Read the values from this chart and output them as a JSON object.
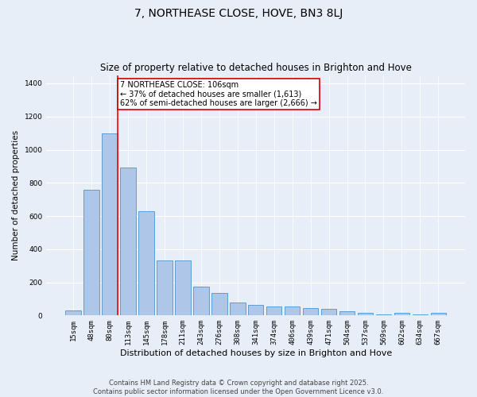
{
  "title": "7, NORTHEASE CLOSE, HOVE, BN3 8LJ",
  "subtitle": "Size of property relative to detached houses in Brighton and Hove",
  "xlabel": "Distribution of detached houses by size in Brighton and Hove",
  "ylabel": "Number of detached properties",
  "footer_line1": "Contains HM Land Registry data © Crown copyright and database right 2025.",
  "footer_line2": "Contains public sector information licensed under the Open Government Licence v3.0.",
  "categories": [
    "15sqm",
    "48sqm",
    "80sqm",
    "113sqm",
    "145sqm",
    "178sqm",
    "211sqm",
    "243sqm",
    "276sqm",
    "308sqm",
    "341sqm",
    "374sqm",
    "406sqm",
    "439sqm",
    "471sqm",
    "504sqm",
    "537sqm",
    "569sqm",
    "602sqm",
    "634sqm",
    "667sqm"
  ],
  "values": [
    30,
    760,
    1100,
    890,
    630,
    330,
    330,
    175,
    135,
    80,
    65,
    55,
    55,
    45,
    38,
    25,
    18,
    5,
    18,
    5,
    18
  ],
  "bar_color": "#aec6e8",
  "bar_edge_color": "#5a9fd4",
  "bg_color": "#e8eef8",
  "grid_color": "#ffffff",
  "property_line_x": 2.42,
  "annotation_text": "7 NORTHEASE CLOSE: 106sqm\n← 37% of detached houses are smaller (1,613)\n62% of semi-detached houses are larger (2,666) →",
  "annotation_border_color": "#cc0000",
  "ylim": [
    0,
    1450
  ],
  "yticks": [
    0,
    200,
    400,
    600,
    800,
    1000,
    1200,
    1400
  ],
  "figsize": [
    6.0,
    5.0
  ],
  "dpi": 100
}
